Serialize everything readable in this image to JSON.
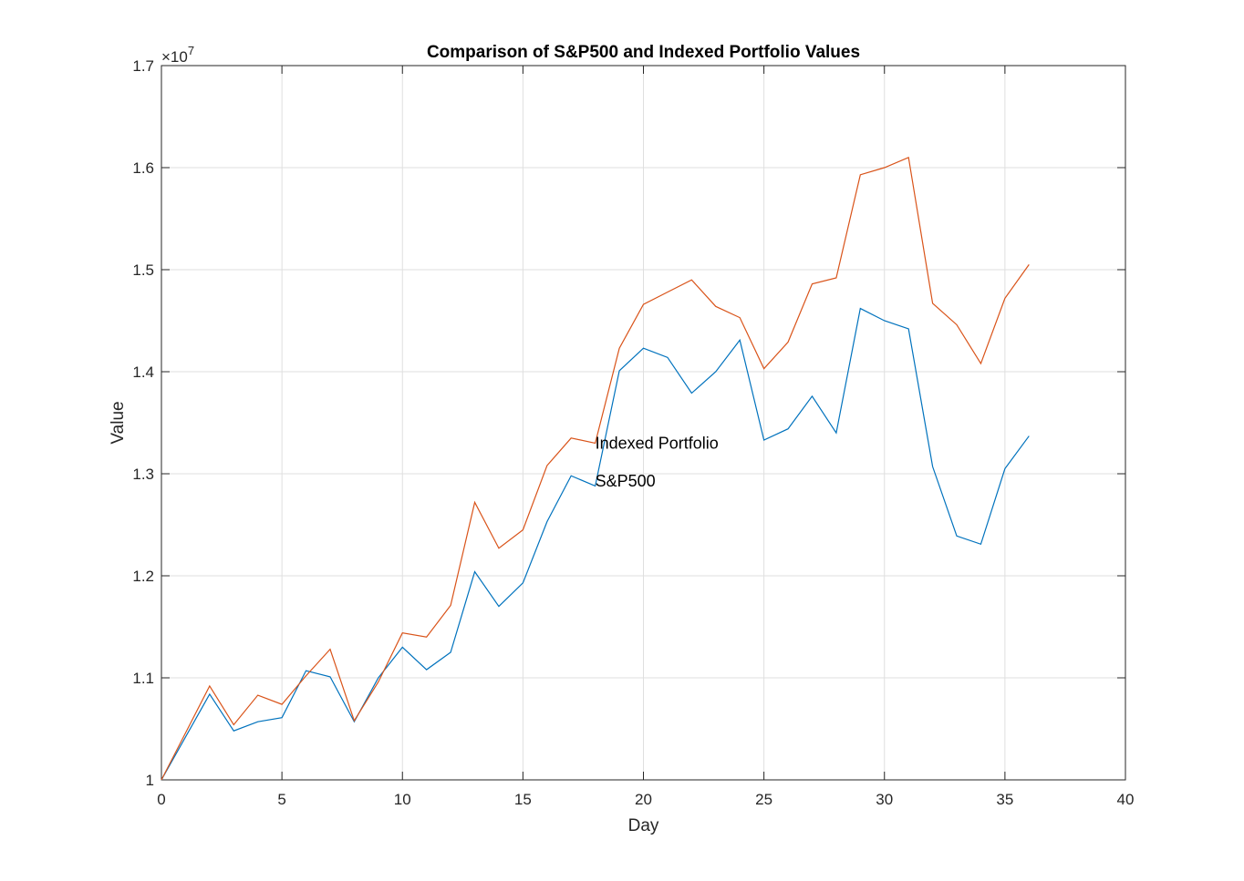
{
  "chart_data": {
    "type": "line",
    "title": "Comparison of S&P500 and Indexed Portfolio Values",
    "xlabel": "Day",
    "ylabel": "Value",
    "xlim": [
      0,
      40
    ],
    "ylim": [
      10000000,
      17000000
    ],
    "x_ticks": [
      0,
      5,
      10,
      15,
      20,
      25,
      30,
      35,
      40
    ],
    "x_tick_labels": [
      "0",
      "5",
      "10",
      "15",
      "20",
      "25",
      "30",
      "35",
      "40"
    ],
    "y_ticks": [
      10000000,
      11000000,
      12000000,
      13000000,
      14000000,
      15000000,
      16000000,
      17000000
    ],
    "y_tick_labels": [
      "1",
      "1.1",
      "1.2",
      "1.3",
      "1.4",
      "1.5",
      "1.6",
      "1.7"
    ],
    "y_exponent_label": {
      "base": "×10",
      "power": "7"
    },
    "grid": true,
    "legend": "none",
    "x": [
      0,
      1,
      2,
      3,
      4,
      5,
      6,
      7,
      8,
      9,
      10,
      11,
      12,
      13,
      14,
      15,
      16,
      17,
      18,
      19,
      20,
      21,
      22,
      23,
      24,
      25,
      26,
      27,
      28,
      29,
      30,
      31,
      32,
      33,
      34,
      35,
      36
    ],
    "series": [
      {
        "color": "#0072BD",
        "values": [
          10000000,
          10420000,
          10840000,
          10480000,
          10570000,
          10610000,
          11070000,
          11010000,
          10570000,
          11000000,
          11300000,
          11080000,
          11250000,
          12040000,
          11700000,
          11930000,
          12530000,
          12980000,
          12880000,
          14010000,
          14230000,
          14140000,
          13790000,
          14000000,
          14310000,
          13330000,
          13440000,
          13760000,
          13400000,
          14620000,
          14500000,
          14420000,
          13070000,
          12390000,
          12310000,
          13050000,
          13370000
        ]
      },
      {
        "color": "#D95319",
        "values": [
          10000000,
          10460000,
          10920000,
          10540000,
          10830000,
          10740000,
          11020000,
          11280000,
          10580000,
          10960000,
          11440000,
          11400000,
          11710000,
          12720000,
          12270000,
          12450000,
          13080000,
          13350000,
          13300000,
          14230000,
          14660000,
          14780000,
          14900000,
          14640000,
          14530000,
          14030000,
          14290000,
          14860000,
          14920000,
          15930000,
          16000000,
          16100000,
          14670000,
          14460000,
          14080000,
          14720000,
          15050000
        ]
      }
    ],
    "annotations": [
      {
        "text": "Indexed Portfolio",
        "x": 18,
        "y": 13300000
      },
      {
        "text": "S&P500",
        "x": 18,
        "y": 12930000
      }
    ]
  }
}
